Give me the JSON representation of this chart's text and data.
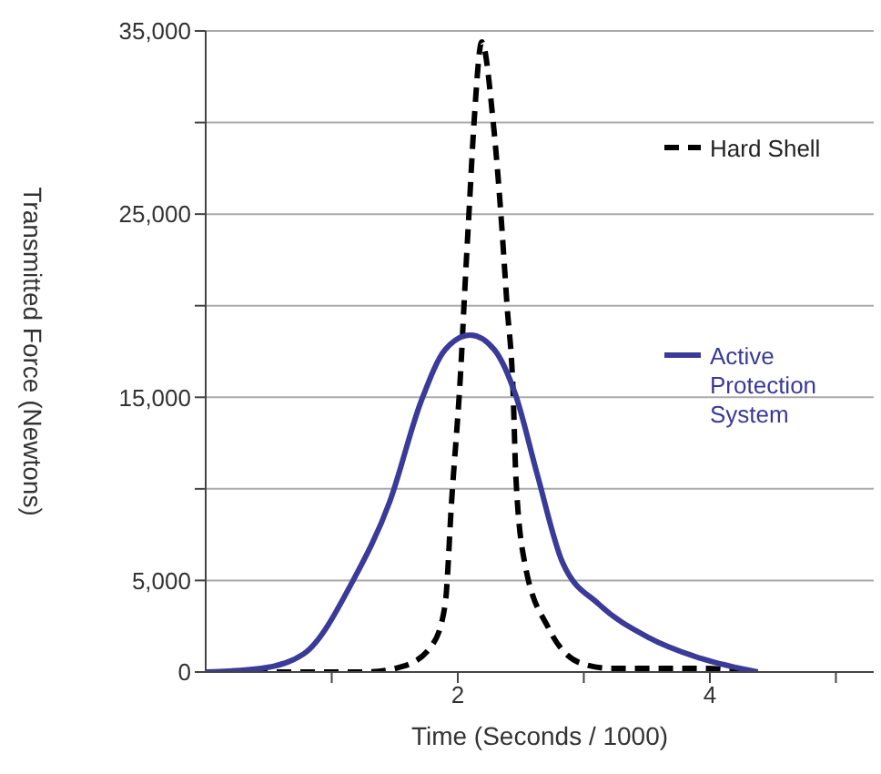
{
  "chart_data": {
    "type": "line",
    "xlabel": "Time (Seconds / 1000)",
    "ylabel": "Transmitted Force (Newtons)",
    "xlim": [
      0,
      5.3
    ],
    "xticks": [
      {
        "value": 1,
        "label": null
      },
      2,
      {
        "value": 3,
        "label": null
      },
      4,
      {
        "value": 5,
        "label": null
      }
    ],
    "ylim": [
      0,
      35000
    ],
    "yticks": [
      0,
      {
        "value": 5000,
        "label": "5,000"
      },
      {
        "value": 10000,
        "label": null
      },
      {
        "value": 15000,
        "label": "15,000"
      },
      {
        "value": 20000,
        "label": null
      },
      {
        "value": 25000,
        "label": "25,000"
      },
      {
        "value": 30000,
        "label": null
      },
      {
        "value": 35000,
        "label": "35,000"
      }
    ],
    "grid": "y",
    "legend": "right",
    "marker": "none",
    "series": [
      {
        "name": "Hard Shell",
        "color": "#000000",
        "line_style": "dashed",
        "x": [
          0,
          0.78,
          1.27,
          1.56,
          1.8,
          1.9,
          1.95,
          2.03,
          2.05,
          2.09,
          2.13,
          2.19,
          2.28,
          2.34,
          2.39,
          2.44,
          2.46,
          2.53,
          2.72,
          2.97,
          3.22,
          3.95,
          4.29
        ],
        "values": [
          0,
          0,
          0,
          300,
          1500,
          3700,
          9200,
          17300,
          20100,
          25200,
          30100,
          34400,
          30100,
          25200,
          20100,
          15100,
          10800,
          6000,
          2400,
          500,
          200,
          200,
          0
        ]
      },
      {
        "name": "Active Protection System",
        "color": "#3a3a99",
        "line_style": "solid",
        "x": [
          0,
          0.44,
          0.78,
          1.17,
          1.46,
          1.71,
          1.9,
          2.1,
          2.29,
          2.46,
          2.63,
          2.83,
          3.12,
          3.51,
          3.95,
          4.38
        ],
        "values": [
          0,
          200,
          1000,
          5000,
          9300,
          14800,
          17600,
          18400,
          17600,
          15100,
          10800,
          6000,
          3700,
          1900,
          700,
          0
        ]
      }
    ]
  }
}
